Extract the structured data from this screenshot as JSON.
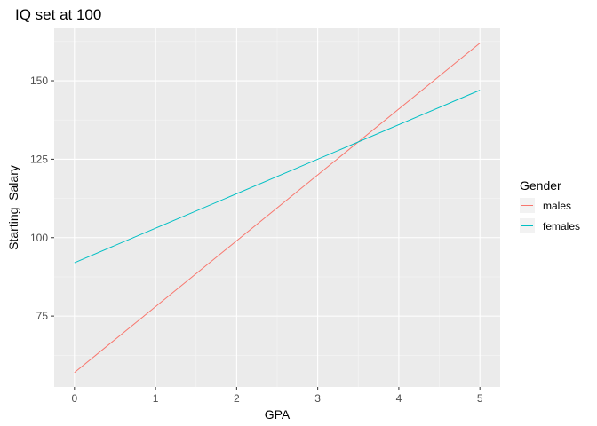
{
  "chart_data": {
    "type": "line",
    "title": "IQ set at 100",
    "xlabel": "GPA",
    "ylabel": "Starting_Salary",
    "xlim": [
      -0.25,
      5.25
    ],
    "ylim": [
      52.4,
      166.7
    ],
    "xticks": [
      0,
      1,
      2,
      3,
      4,
      5
    ],
    "xtick_labels": [
      "0",
      "1",
      "2",
      "3",
      "4",
      "5"
    ],
    "yticks": [
      75,
      100,
      125,
      150
    ],
    "ytick_labels": [
      "75",
      "100",
      "125",
      "150"
    ],
    "grid": true,
    "background": "#ebebeb",
    "legend": {
      "title": "Gender",
      "position": "right"
    },
    "series": [
      {
        "name": "males",
        "color": "#f8766d",
        "x": [
          0,
          5
        ],
        "y": [
          57,
          162
        ]
      },
      {
        "name": "females",
        "color": "#00bfc4",
        "x": [
          0,
          5
        ],
        "y": [
          92,
          147
        ]
      }
    ]
  }
}
